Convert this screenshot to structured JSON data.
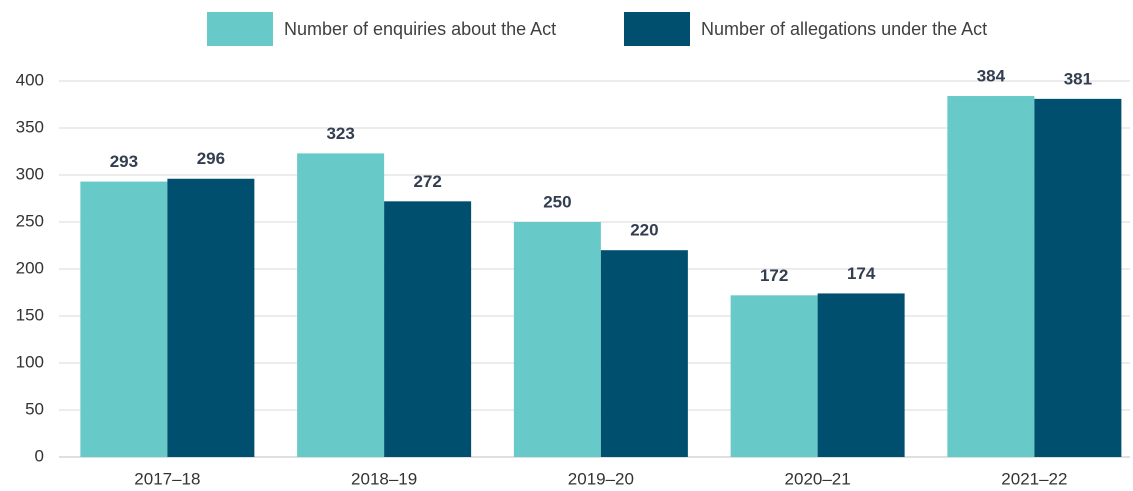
{
  "chart_data": {
    "type": "bar",
    "categories": [
      "2017–18",
      "2018–19",
      "2019–20",
      "2020–21",
      "2021–22"
    ],
    "series": [
      {
        "name": "Number of enquiries about the Act",
        "color": "#67c9c8",
        "values": [
          293,
          323,
          250,
          172,
          384
        ]
      },
      {
        "name": "Number of allegations under the Act",
        "color": "#004f6e",
        "values": [
          296,
          272,
          220,
          174,
          381
        ]
      }
    ],
    "ylim": [
      0,
      400
    ],
    "yticks": [
      0,
      50,
      100,
      150,
      200,
      250,
      300,
      350,
      400
    ],
    "grid": true,
    "legend": "top"
  }
}
